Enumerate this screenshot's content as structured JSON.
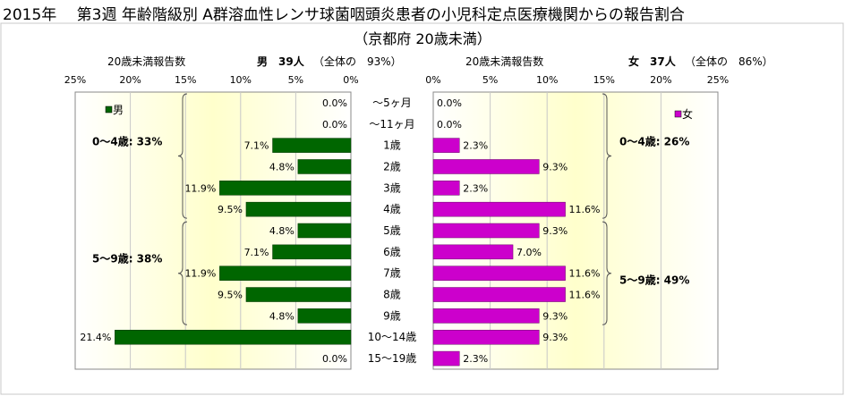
{
  "title": "2015年　 第3週 年齢階級別 A群溶血性レンサ球菌咽頭炎患者の小児科定点医療機関からの報告割合",
  "subtitle": "（京都府 20歳未満）",
  "headers": {
    "male_axis_label": "20歳未満報告数",
    "male_count": "男　39人",
    "male_share": "（全体の　93%）",
    "female_axis_label": "20歳未満報告数",
    "female_count": "女　37人",
    "female_share": "（全体の　86%）"
  },
  "chart_data": {
    "type": "bar",
    "orientation": "horizontal",
    "layout": "population-pyramid",
    "categories": [
      "～5ヶ月",
      "～11ヶ月",
      "1歳",
      "2歳",
      "3歳",
      "4歳",
      "5歳",
      "6歳",
      "7歳",
      "8歳",
      "9歳",
      "10～14歳",
      "15～19歳"
    ],
    "series": [
      {
        "name": "男",
        "color": "#006600",
        "values": [
          0.0,
          0.0,
          7.1,
          4.8,
          11.9,
          9.5,
          4.8,
          7.1,
          11.9,
          9.5,
          4.8,
          21.4,
          0.0
        ],
        "labels": [
          "0.0%",
          "0.0%",
          "7.1%",
          "4.8%",
          "11.9%",
          "9.5%",
          "4.8%",
          "7.1%",
          "11.9%",
          "9.5%",
          "4.8%",
          "21.4%",
          "0.0%"
        ]
      },
      {
        "name": "女",
        "color": "#cc00cc",
        "values": [
          0.0,
          0.0,
          2.3,
          9.3,
          2.3,
          11.6,
          9.3,
          7.0,
          11.6,
          11.6,
          9.3,
          9.3,
          2.3
        ],
        "labels": [
          "0.0%",
          "0.0%",
          "2.3%",
          "9.3%",
          "2.3%",
          "11.6%",
          "9.3%",
          "7.0%",
          "11.6%",
          "11.6%",
          "9.3%",
          "9.3%",
          "2.3%"
        ]
      }
    ],
    "xlim": [
      0,
      25
    ],
    "ticks": [
      "25%",
      "20%",
      "15%",
      "10%",
      "5%",
      "0%"
    ],
    "female_ticks": [
      "0%",
      "5%",
      "10%",
      "15%",
      "20%",
      "25%"
    ],
    "group_annotations": {
      "male": [
        "0～4歳: 33%",
        "5～9歳: 38%"
      ],
      "female": [
        "0～4歳: 26%",
        "5～9歳: 49%"
      ]
    },
    "legend": {
      "male": "男",
      "female": "女"
    },
    "colors": {
      "male_bar": "#006600",
      "female_bar": "#cc00cc",
      "band_center": "#ffffcc",
      "band_edge": "#ffffff"
    }
  }
}
